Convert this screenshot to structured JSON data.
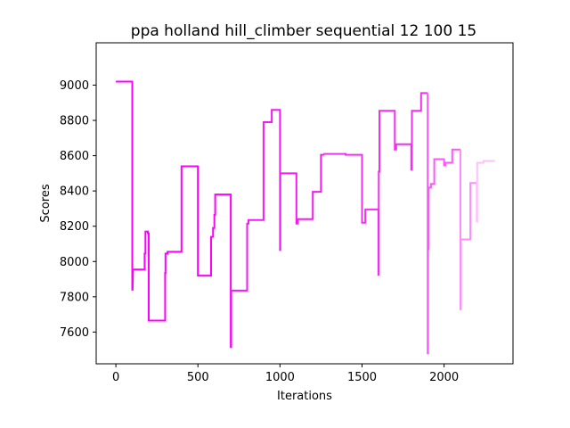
{
  "chart_data": {
    "type": "line",
    "title": "ppa holland hill_climber sequential 12 100 15",
    "xlabel": "Iterations",
    "ylabel": "Scores",
    "xlim": [
      -120,
      2420
    ],
    "ylim": [
      7420,
      9240
    ],
    "xticks": [
      0,
      500,
      1000,
      1500,
      2000
    ],
    "yticks": [
      7600,
      7800,
      8000,
      8200,
      8400,
      8600,
      8800,
      9000
    ],
    "grid": false,
    "legend": "none",
    "series": [
      {
        "color": "#ff00ff",
        "points": [
          [
            0,
            9020
          ],
          [
            100,
            9020
          ],
          [
            100,
            7840
          ],
          [
            102,
            7840
          ],
          [
            104,
            7955
          ],
          [
            130,
            7955
          ],
          [
            175,
            7955
          ],
          [
            175,
            8045
          ],
          [
            180,
            8045
          ],
          [
            180,
            8170
          ],
          [
            195,
            8170
          ],
          [
            195,
            8160
          ],
          [
            200,
            8160
          ],
          [
            200,
            7665
          ],
          [
            300,
            7665
          ],
          [
            300,
            7935
          ],
          [
            302,
            7935
          ],
          [
            302,
            8045
          ],
          [
            315,
            8045
          ],
          [
            315,
            8055
          ],
          [
            400,
            8055
          ],
          [
            400,
            8540
          ],
          [
            500,
            8540
          ],
          [
            500,
            7920
          ],
          [
            580,
            7920
          ],
          [
            580,
            8140
          ],
          [
            592,
            8140
          ],
          [
            592,
            8190
          ],
          [
            600,
            8190
          ],
          [
            600,
            8265
          ],
          [
            605,
            8265
          ],
          [
            605,
            8380
          ],
          [
            700,
            8380
          ],
          [
            700,
            7515
          ],
          [
            702,
            7515
          ],
          [
            702,
            7835
          ]
        ]
      },
      {
        "color": "#f51af5",
        "points": [
          [
            702,
            7835
          ],
          [
            800,
            7835
          ],
          [
            800,
            8215
          ],
          [
            808,
            8215
          ],
          [
            808,
            8235
          ],
          [
            900,
            8235
          ],
          [
            900,
            8790
          ],
          [
            950,
            8790
          ],
          [
            950,
            8860
          ],
          [
            1000,
            8860
          ],
          [
            1000,
            8065
          ],
          [
            1002,
            8065
          ],
          [
            1002,
            8500
          ],
          [
            1100,
            8500
          ],
          [
            1100,
            8215
          ],
          [
            1108,
            8215
          ],
          [
            1108,
            8240
          ],
          [
            1200,
            8240
          ],
          [
            1200,
            8395
          ],
          [
            1250,
            8395
          ],
          [
            1250,
            8605
          ],
          [
            1265,
            8605
          ],
          [
            1265,
            8610
          ]
        ]
      },
      {
        "color": "#f030f0",
        "points": [
          [
            1265,
            8610
          ],
          [
            1400,
            8610
          ],
          [
            1400,
            8605
          ],
          [
            1500,
            8605
          ],
          [
            1500,
            8220
          ],
          [
            1520,
            8220
          ],
          [
            1520,
            8295
          ],
          [
            1600,
            8295
          ],
          [
            1600,
            7925
          ],
          [
            1602,
            7925
          ],
          [
            1602,
            8510
          ],
          [
            1606,
            8510
          ],
          [
            1606,
            8855
          ],
          [
            1700,
            8855
          ],
          [
            1700,
            8635
          ],
          [
            1708,
            8635
          ],
          [
            1708,
            8665
          ],
          [
            1800,
            8665
          ],
          [
            1800,
            8520
          ],
          [
            1804,
            8520
          ],
          [
            1804,
            8855
          ],
          [
            1860,
            8855
          ],
          [
            1860,
            8955
          ],
          [
            1900,
            8955
          ]
        ]
      },
      {
        "color": "#ff55ff",
        "points": [
          [
            1900,
            8955
          ],
          [
            1900,
            7480
          ],
          [
            1902,
            7480
          ],
          [
            1902,
            8070
          ],
          [
            1906,
            8070
          ],
          [
            1906,
            8420
          ],
          [
            1920,
            8420
          ],
          [
            1920,
            8440
          ],
          [
            1940,
            8440
          ],
          [
            1940,
            8580
          ],
          [
            2000,
            8580
          ],
          [
            2000,
            8545
          ],
          [
            2008,
            8545
          ],
          [
            2008,
            8560
          ],
          [
            2050,
            8560
          ],
          [
            2050,
            8635
          ],
          [
            2100,
            8635
          ]
        ]
      },
      {
        "color": "#ff8cff",
        "points": [
          [
            2100,
            8635
          ],
          [
            2100,
            7730
          ],
          [
            2102,
            7730
          ],
          [
            2102,
            8125
          ],
          [
            2160,
            8125
          ],
          [
            2160,
            8445
          ],
          [
            2200,
            8445
          ],
          [
            2200,
            8225
          ]
        ]
      },
      {
        "color": "#ffc0ff",
        "points": [
          [
            2200,
            8225
          ],
          [
            2202,
            8225
          ],
          [
            2202,
            8560
          ],
          [
            2240,
            8560
          ],
          [
            2240,
            8570
          ],
          [
            2310,
            8570
          ]
        ]
      }
    ]
  }
}
